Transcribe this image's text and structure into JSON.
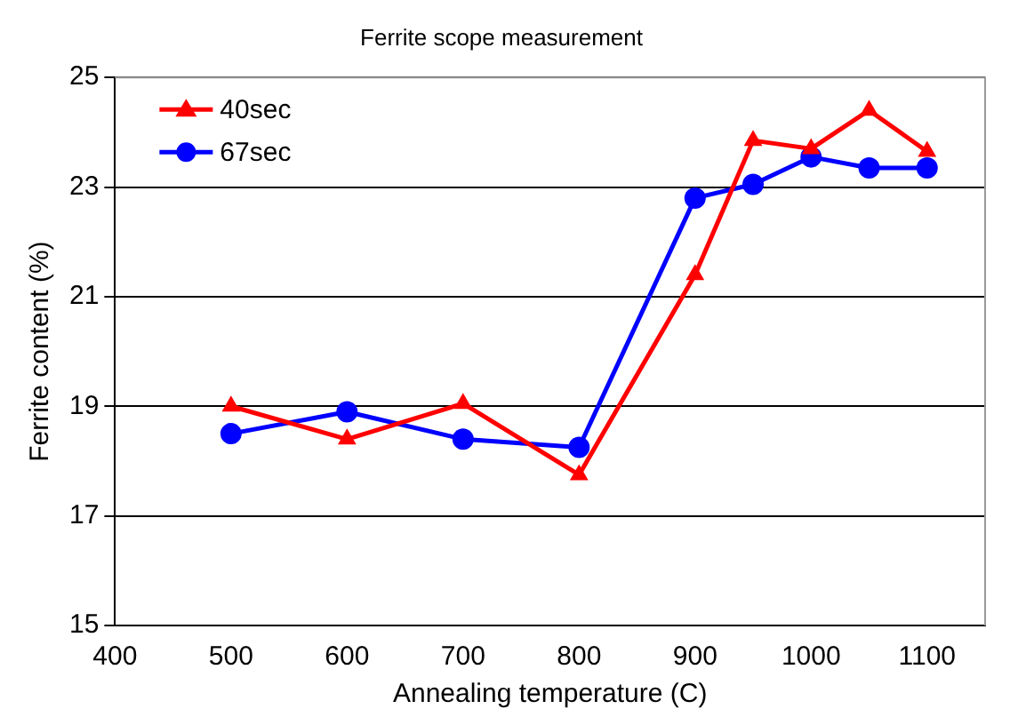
{
  "chart_data": {
    "type": "line",
    "title": "Ferrite scope measurement",
    "xlabel": "Annealing temperature (C)",
    "ylabel": "Ferrite content (%)",
    "x": [
      500,
      600,
      700,
      800,
      900,
      950,
      1000,
      1050,
      1100
    ],
    "series": [
      {
        "name": "40sec",
        "color": "#ff0000",
        "marker": "triangle",
        "values": [
          19.0,
          18.4,
          19.05,
          17.75,
          21.4,
          23.85,
          23.7,
          24.4,
          23.65
        ]
      },
      {
        "name": "67sec",
        "color": "#0000ff",
        "marker": "circle",
        "values": [
          18.5,
          18.9,
          18.4,
          18.25,
          22.8,
          23.05,
          23.55,
          23.35,
          23.35
        ]
      }
    ],
    "xlim": [
      400,
      1150
    ],
    "xticks": [
      400,
      500,
      600,
      700,
      800,
      900,
      1000,
      1100
    ],
    "ylim": [
      15,
      25
    ],
    "yticks": [
      15,
      17,
      19,
      21,
      23,
      25
    ],
    "grid": "y",
    "legend": "top left",
    "line_style": "solid"
  }
}
